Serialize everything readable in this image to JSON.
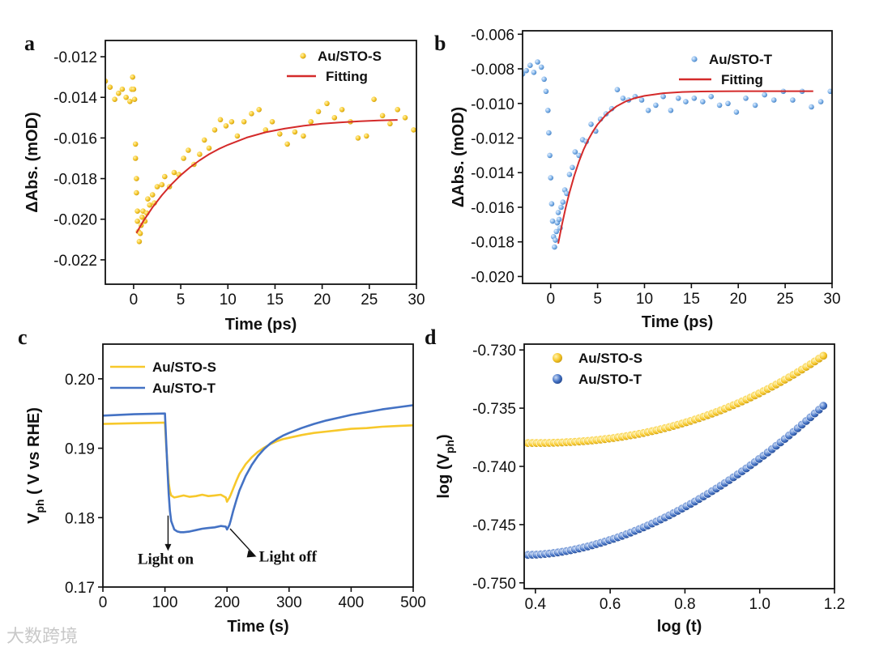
{
  "chart_data": [
    {
      "panel": "a",
      "type": "scatter",
      "xlabel": "Time (ps)",
      "ylabel": "ΔAbs. (mOD)",
      "xlim": [
        -3,
        30
      ],
      "ylim": [
        -0.0232,
        -0.0112
      ],
      "xticks": [
        0,
        5,
        10,
        15,
        20,
        25,
        30
      ],
      "xtick_labels": [
        "0",
        "5",
        "10",
        "15",
        "20",
        "25",
        "30"
      ],
      "yticks": [
        -0.012,
        -0.014,
        -0.016,
        -0.018,
        -0.02,
        -0.022
      ],
      "ytick_labels": [
        "-0.012",
        "-0.014",
        "-0.016",
        "-0.018",
        "-0.020",
        "-0.022"
      ],
      "legend": [
        "Au/STO-S",
        "Fitting"
      ],
      "legend_position": "top-right",
      "series": [
        {
          "name": "Au/STO-S",
          "kind": "points",
          "color": "#F7C82B",
          "x": [
            -3.0,
            -2.5,
            -2.0,
            -1.6,
            -1.2,
            -0.8,
            -0.4,
            -0.2,
            -0.1,
            0.0,
            0.1,
            0.2,
            0.2,
            0.3,
            0.3,
            0.4,
            0.4,
            0.5,
            0.6,
            0.7,
            0.8,
            0.9,
            1.0,
            1.2,
            1.4,
            1.5,
            1.7,
            2.0,
            2.2,
            2.5,
            3.0,
            3.3,
            3.8,
            4.3,
            4.8,
            5.3,
            5.8,
            6.4,
            7.0,
            7.5,
            8.0,
            8.6,
            9.2,
            9.8,
            10.4,
            11.0,
            11.7,
            12.5,
            13.3,
            14.0,
            14.7,
            15.5,
            16.3,
            17.1,
            18.0,
            18.8,
            19.6,
            20.5,
            21.3,
            22.1,
            23.0,
            23.8,
            24.7,
            25.5,
            26.4,
            27.2,
            28.0,
            28.8,
            29.7
          ],
          "y": [
            -0.0132,
            -0.0135,
            -0.0141,
            -0.0138,
            -0.0136,
            -0.014,
            -0.0142,
            -0.0136,
            -0.013,
            -0.0136,
            -0.0141,
            -0.0163,
            -0.017,
            -0.018,
            -0.0187,
            -0.0196,
            -0.0201,
            -0.0206,
            -0.0211,
            -0.0207,
            -0.0203,
            -0.0199,
            -0.0196,
            -0.0201,
            -0.0197,
            -0.019,
            -0.0193,
            -0.0188,
            -0.0192,
            -0.0184,
            -0.0183,
            -0.0179,
            -0.0184,
            -0.0177,
            -0.0178,
            -0.017,
            -0.0166,
            -0.0173,
            -0.0168,
            -0.0161,
            -0.0165,
            -0.0156,
            -0.0151,
            -0.0154,
            -0.0152,
            -0.0159,
            -0.0152,
            -0.0148,
            -0.0146,
            -0.0156,
            -0.0152,
            -0.0158,
            -0.0163,
            -0.0157,
            -0.0159,
            -0.0152,
            -0.0147,
            -0.0143,
            -0.015,
            -0.0146,
            -0.0152,
            -0.016,
            -0.0159,
            -0.0141,
            -0.0149,
            -0.0153,
            -0.0146,
            -0.015,
            -0.0156
          ]
        },
        {
          "name": "Fitting",
          "kind": "line",
          "color": "#D42A2A",
          "x": [
            0.3,
            1,
            2,
            3,
            4,
            5,
            6,
            7,
            8,
            9,
            10,
            12,
            14,
            16,
            18,
            20,
            22,
            24,
            26,
            28
          ],
          "y": [
            -0.02068,
            -0.02012,
            -0.01942,
            -0.01882,
            -0.01829,
            -0.01783,
            -0.01744,
            -0.0171,
            -0.0168,
            -0.01655,
            -0.01634,
            -0.01598,
            -0.01572,
            -0.01554,
            -0.0154,
            -0.0153,
            -0.01523,
            -0.01518,
            -0.01514,
            -0.01511
          ]
        }
      ]
    },
    {
      "panel": "b",
      "type": "scatter",
      "xlabel": "Time (ps)",
      "ylabel": "ΔAbs. (mOD)",
      "xlim": [
        -3,
        30
      ],
      "ylim": [
        -0.0204,
        -0.0058
      ],
      "xticks": [
        0,
        5,
        10,
        15,
        20,
        25,
        30
      ],
      "xtick_labels": [
        "0",
        "5",
        "10",
        "15",
        "20",
        "25",
        "30"
      ],
      "yticks": [
        -0.006,
        -0.008,
        -0.01,
        -0.012,
        -0.014,
        -0.016,
        -0.018,
        -0.02
      ],
      "ytick_labels": [
        "-0.006",
        "-0.008",
        "-0.010",
        "-0.012",
        "-0.014",
        "-0.016",
        "-0.018",
        "-0.020"
      ],
      "legend": [
        "Au/STO-T",
        "Fitting"
      ],
      "legend_position": "top-right",
      "series": [
        {
          "name": "Au/STO-T",
          "kind": "points",
          "color": "#5B9BD5",
          "x": [
            -3.0,
            -2.6,
            -2.2,
            -1.8,
            -1.4,
            -1.0,
            -0.7,
            -0.5,
            -0.3,
            -0.2,
            -0.1,
            0.0,
            0.1,
            0.2,
            0.3,
            0.4,
            0.5,
            0.6,
            0.7,
            0.8,
            0.9,
            1.0,
            1.1,
            1.3,
            1.5,
            1.7,
            2.0,
            2.3,
            2.6,
            3.0,
            3.4,
            3.8,
            4.3,
            4.8,
            5.3,
            5.9,
            6.5,
            7.1,
            7.7,
            8.3,
            9.0,
            9.7,
            10.4,
            11.2,
            12.0,
            12.8,
            13.6,
            14.4,
            15.3,
            16.2,
            17.1,
            18.0,
            18.9,
            19.8,
            20.8,
            21.8,
            22.8,
            23.8,
            24.8,
            25.8,
            26.8,
            27.8,
            28.8,
            29.8
          ],
          "y": [
            -0.0083,
            -0.0081,
            -0.0078,
            -0.0082,
            -0.0076,
            -0.0079,
            -0.0086,
            -0.0093,
            -0.0104,
            -0.0117,
            -0.013,
            -0.0143,
            -0.0158,
            -0.0168,
            -0.0177,
            -0.0183,
            -0.0179,
            -0.0174,
            -0.0169,
            -0.0163,
            -0.0167,
            -0.0172,
            -0.016,
            -0.0157,
            -0.015,
            -0.0152,
            -0.0141,
            -0.0137,
            -0.0128,
            -0.013,
            -0.0121,
            -0.0122,
            -0.0112,
            -0.0116,
            -0.0109,
            -0.0106,
            -0.0103,
            -0.0092,
            -0.0097,
            -0.0098,
            -0.0096,
            -0.0098,
            -0.0104,
            -0.0101,
            -0.0096,
            -0.0104,
            -0.0097,
            -0.0099,
            -0.0097,
            -0.0099,
            -0.0096,
            -0.0101,
            -0.01,
            -0.0105,
            -0.0097,
            -0.0101,
            -0.0095,
            -0.0098,
            -0.0093,
            -0.0098,
            -0.0093,
            -0.0102,
            -0.0099,
            -0.0093
          ]
        },
        {
          "name": "Fitting",
          "kind": "line",
          "color": "#D42A2A",
          "x": [
            0.8,
            1.2,
            1.6,
            2,
            2.5,
            3,
            3.5,
            4,
            4.5,
            5,
            6,
            7,
            8,
            9,
            10,
            12,
            14,
            16,
            18,
            20,
            22,
            24,
            26,
            28
          ],
          "y": [
            -0.0181,
            -0.01701,
            -0.01603,
            -0.01515,
            -0.01419,
            -0.01337,
            -0.01268,
            -0.01211,
            -0.01162,
            -0.01121,
            -0.01059,
            -0.01017,
            -0.00988,
            -0.00969,
            -0.00956,
            -0.00941,
            -0.00934,
            -0.00931,
            -0.0093,
            -0.00929,
            -0.00929,
            -0.00929,
            -0.00929,
            -0.00929
          ]
        }
      ]
    },
    {
      "panel": "c",
      "type": "line",
      "xlabel": "Time (s)",
      "ylabel": "V_ph ( V vs RHE)",
      "ylabel_main": "V",
      "ylabel_sub": "ph",
      "ylabel_rest": " ( V vs RHE)",
      "xlim": [
        0,
        500
      ],
      "ylim": [
        0.17,
        0.205
      ],
      "xticks": [
        0,
        100,
        200,
        300,
        400,
        500
      ],
      "xtick_labels": [
        "0",
        "100",
        "200",
        "300",
        "400",
        "500"
      ],
      "yticks": [
        0.17,
        0.18,
        0.19,
        0.2
      ],
      "ytick_labels": [
        "0.17",
        "0.18",
        "0.19",
        "0.20"
      ],
      "legend": [
        "Au/STO-S",
        "Au/STO-T"
      ],
      "legend_position": "top-left",
      "annotations": [
        "Light on",
        "Light off"
      ],
      "series": [
        {
          "name": "Au/STO-S",
          "color": "#F7C82B",
          "x": [
            0,
            50,
            100,
            102,
            104,
            106,
            108,
            110,
            115,
            120,
            130,
            140,
            150,
            160,
            170,
            180,
            190,
            198,
            200,
            202,
            204,
            206,
            210,
            215,
            220,
            230,
            240,
            250,
            260,
            270,
            280,
            290,
            300,
            320,
            340,
            360,
            380,
            400,
            425,
            450,
            475,
            500
          ],
          "y": [
            0.1935,
            0.1936,
            0.1937,
            0.1905,
            0.1875,
            0.185,
            0.1838,
            0.1832,
            0.1829,
            0.183,
            0.1832,
            0.183,
            0.1831,
            0.1833,
            0.1831,
            0.1832,
            0.1833,
            0.1829,
            0.1823,
            0.1826,
            0.1829,
            0.1833,
            0.1842,
            0.1853,
            0.1863,
            0.1877,
            0.1887,
            0.1895,
            0.1901,
            0.1906,
            0.191,
            0.1913,
            0.1915,
            0.1919,
            0.1922,
            0.1924,
            0.1926,
            0.1928,
            0.1929,
            0.1931,
            0.1932,
            0.1933
          ]
        },
        {
          "name": "Au/STO-T",
          "color": "#4472C4",
          "x": [
            0,
            50,
            100,
            102,
            104,
            106,
            108,
            110,
            115,
            120,
            125,
            130,
            140,
            150,
            160,
            170,
            180,
            190,
            198,
            200,
            202,
            204,
            206,
            210,
            215,
            220,
            230,
            240,
            250,
            260,
            270,
            280,
            290,
            300,
            320,
            340,
            360,
            380,
            400,
            425,
            450,
            475,
            500
          ],
          "y": [
            0.1947,
            0.1949,
            0.195,
            0.191,
            0.187,
            0.1835,
            0.181,
            0.1795,
            0.1783,
            0.178,
            0.1779,
            0.1779,
            0.178,
            0.1782,
            0.1784,
            0.1785,
            0.1786,
            0.1788,
            0.1787,
            0.1783,
            0.1786,
            0.179,
            0.1796,
            0.181,
            0.1825,
            0.1839,
            0.186,
            0.1876,
            0.1889,
            0.1899,
            0.1907,
            0.1913,
            0.1918,
            0.1922,
            0.1929,
            0.1935,
            0.194,
            0.1944,
            0.1948,
            0.1952,
            0.1956,
            0.1959,
            0.1962
          ]
        }
      ]
    },
    {
      "panel": "d",
      "type": "scatter",
      "xlabel": "log (t)",
      "ylabel": "log (V_ph)",
      "ylabel_main": "log (V",
      "ylabel_sub": "ph",
      "ylabel_rest": ")",
      "xlim": [
        0.37,
        1.2
      ],
      "ylim": [
        -0.7505,
        -0.7295
      ],
      "xticks": [
        0.4,
        0.6,
        0.8,
        1.0,
        1.2
      ],
      "xtick_labels": [
        "0.4",
        "0.6",
        "0.8",
        "1.0",
        "1.2"
      ],
      "yticks": [
        -0.73,
        -0.735,
        -0.74,
        -0.745,
        -0.75
      ],
      "ytick_labels": [
        "-0.730",
        "-0.735",
        "-0.740",
        "-0.745",
        "-0.750"
      ],
      "legend": [
        "Au/STO-S",
        "Au/STO-T"
      ],
      "legend_position": "top-left",
      "series": [
        {
          "name": "Au/STO-S",
          "color": "#F7C82B",
          "curve": {
            "x_start": 0.38,
            "x_end": 1.17,
            "n_points": 70,
            "y_start": -0.738,
            "y_end": -0.7305,
            "exponent": 2.3
          }
        },
        {
          "name": "Au/STO-T",
          "color": "#4472C4",
          "curve": {
            "x_start": 0.38,
            "x_end": 1.17,
            "n_points": 70,
            "y_start": -0.7476,
            "y_end": -0.7348,
            "exponent": 1.8
          }
        }
      ]
    }
  ],
  "panel_labels": [
    "a",
    "b",
    "c",
    "d"
  ],
  "watermark": "大数跨境"
}
